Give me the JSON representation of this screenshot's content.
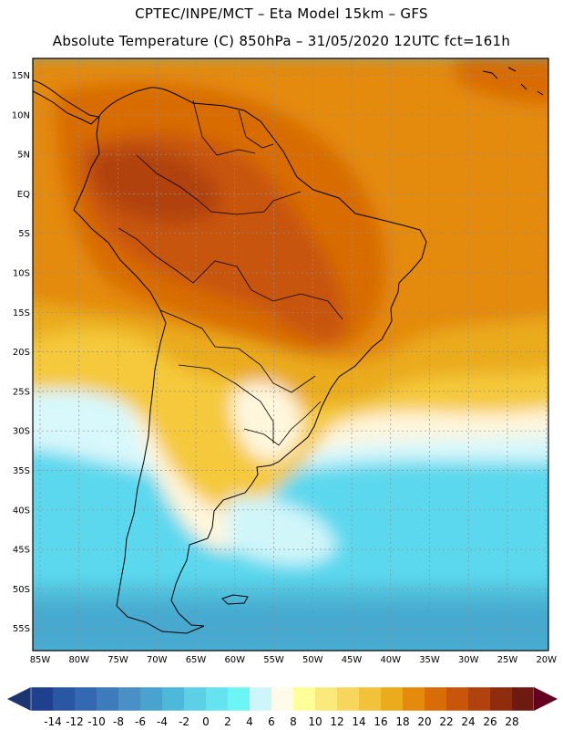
{
  "header": {
    "line1": "CPTEC/INPE/MCT –  Eta Model 15km – GFS",
    "line2": "Absolute Temperature (C) 850hPa – 31/05/2020 12UTC fct=161h"
  },
  "axes": {
    "lat_ticks": [
      "15N",
      "10N",
      "5N",
      "EQ",
      "5S",
      "10S",
      "15S",
      "20S",
      "25S",
      "30S",
      "35S",
      "40S",
      "45S",
      "50S",
      "55S"
    ],
    "lon_ticks": [
      "85W",
      "80W",
      "75W",
      "70W",
      "65W",
      "60W",
      "55W",
      "50W",
      "45W",
      "40W",
      "35W",
      "30W",
      "25W",
      "20W"
    ]
  },
  "colorbar": {
    "labels": [
      "-14",
      "-12",
      "-10",
      "-8",
      "-6",
      "-4",
      "-2",
      "0",
      "2",
      "4",
      "6",
      "8",
      "10",
      "12",
      "14",
      "16",
      "18",
      "20",
      "22",
      "24",
      "26",
      "28"
    ],
    "colors": [
      "#1f3f8f",
      "#2a57a3",
      "#3468b0",
      "#3e7bbc",
      "#4a8fc6",
      "#4aa3cf",
      "#4db8d9",
      "#5dd0e6",
      "#66e3f0",
      "#6cf5f5",
      "#cdf6fb",
      "#fffbe8",
      "#ffff9a",
      "#fbe97c",
      "#f7d65c",
      "#f2c23a",
      "#eaab1c",
      "#e48a0c",
      "#d86c05",
      "#c85509",
      "#b1420d",
      "#8f2c0d",
      "#6e1a11"
    ],
    "low_arrow_color": "#1c3470",
    "high_arrow_color": "#640020"
  }
}
